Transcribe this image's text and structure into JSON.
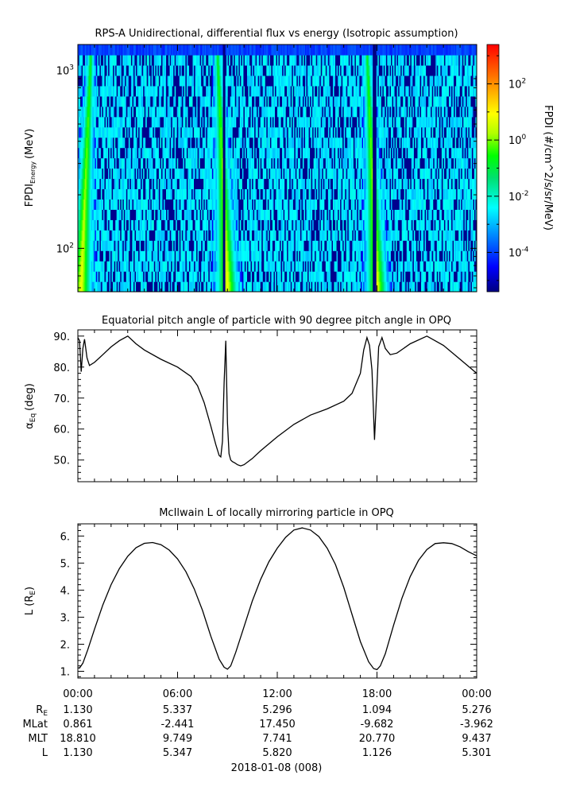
{
  "chart_data": [
    {
      "type": "heatmap",
      "title": "RPS-A Unidirectional, differential flux vs energy (Isotropic assumption)",
      "ylabel_main": "FPDI",
      "ylabel_sub": "Energy",
      "ylabel_unit": "(MeV)",
      "yscale": "log",
      "ylim": [
        57,
        1400
      ],
      "y_ticks": [
        {
          "value": 100,
          "base": "10",
          "exp": "2"
        },
        {
          "value": 1000,
          "base": "10",
          "exp": "3"
        }
      ],
      "xlim_hours": [
        0,
        24
      ],
      "colorbar": {
        "label": "FPDI (#/cm^2/s/sr/MeV)",
        "scale": "log",
        "range": [
          -5.4,
          3.4
        ],
        "ticks": [
          {
            "value": -4,
            "base": "10",
            "exp": "-4"
          },
          {
            "value": -2,
            "base": "10",
            "exp": "-2"
          },
          {
            "value": 0,
            "base": "10",
            "exp": "0"
          },
          {
            "value": 2,
            "base": "10",
            "exp": "2"
          }
        ]
      },
      "features": {
        "high_flux_bands_hours": [
          0.2,
          9.0,
          18.0
        ],
        "gap_hours": [
          8.8,
          17.85
        ]
      }
    },
    {
      "type": "line",
      "title": "Equatorial pitch angle of particle with 90 degree pitch angle in OPQ",
      "ylabel_main": "α",
      "ylabel_sub": "Eq",
      "ylabel_unit": "(deg)",
      "ylim": [
        43,
        92
      ],
      "y_ticks": [
        "50.",
        "60.",
        "70.",
        "80.",
        "90."
      ],
      "xlim_hours": [
        0,
        24
      ],
      "x": [
        0.0,
        0.1,
        0.2,
        0.3,
        0.4,
        0.55,
        0.7,
        1.0,
        1.5,
        2.0,
        2.5,
        3.0,
        3.5,
        4.0,
        5.0,
        6.0,
        6.8,
        7.2,
        7.6,
        8.0,
        8.3,
        8.5,
        8.6,
        8.7,
        8.8,
        8.9,
        9.0,
        9.1,
        9.2,
        9.3,
        9.4,
        9.5,
        9.6,
        9.8,
        10.0,
        10.5,
        11.0,
        12.0,
        13.0,
        14.0,
        15.0,
        16.0,
        16.5,
        17.0,
        17.2,
        17.4,
        17.55,
        17.7,
        17.85,
        18.0,
        18.1,
        18.3,
        18.5,
        18.8,
        19.2,
        20.0,
        21.0,
        22.0,
        23.0,
        24.0
      ],
      "y": [
        89.5,
        88.5,
        78.5,
        86.0,
        89.0,
        83.0,
        80.5,
        81.5,
        84.0,
        86.5,
        88.5,
        90.0,
        87.5,
        85.5,
        82.5,
        80.0,
        77.0,
        74.0,
        68.5,
        61.0,
        55.0,
        51.5,
        51.0,
        56.0,
        75.0,
        88.5,
        62.0,
        52.0,
        50.0,
        49.5,
        49.2,
        48.9,
        48.5,
        48.1,
        48.5,
        50.5,
        53.0,
        57.5,
        61.5,
        64.5,
        66.5,
        69.0,
        71.5,
        78.0,
        85.5,
        89.5,
        87.0,
        79.0,
        56.5,
        74.0,
        86.5,
        89.5,
        86.0,
        84.0,
        84.5,
        87.5,
        90.0,
        87.0,
        82.5,
        78.0
      ]
    },
    {
      "type": "line",
      "title": "McIlwain L of locally mirroring particle in OPQ",
      "ylabel_main": "L (R",
      "ylabel_sub": "E",
      "ylabel_unit": ")",
      "ylim": [
        0.75,
        6.45
      ],
      "y_ticks": [
        "1.",
        "2.",
        "3.",
        "4.",
        "5.",
        "6."
      ],
      "xlim_hours": [
        0,
        24
      ],
      "x": [
        0.0,
        0.1,
        0.3,
        0.6,
        1.0,
        1.5,
        2.0,
        2.5,
        3.0,
        3.5,
        4.0,
        4.5,
        5.0,
        5.5,
        6.0,
        6.5,
        7.0,
        7.5,
        8.0,
        8.5,
        8.8,
        9.0,
        9.2,
        9.5,
        10.0,
        10.5,
        11.0,
        11.5,
        12.0,
        12.5,
        13.0,
        13.5,
        14.0,
        14.5,
        15.0,
        15.5,
        16.0,
        16.5,
        17.0,
        17.5,
        17.8,
        18.0,
        18.2,
        18.5,
        19.0,
        19.5,
        20.0,
        20.5,
        21.0,
        21.5,
        22.0,
        22.5,
        23.0,
        23.5,
        24.0
      ],
      "y": [
        1.13,
        1.12,
        1.3,
        1.8,
        2.55,
        3.45,
        4.2,
        4.8,
        5.25,
        5.57,
        5.73,
        5.76,
        5.68,
        5.48,
        5.15,
        4.68,
        4.05,
        3.25,
        2.3,
        1.45,
        1.15,
        1.08,
        1.2,
        1.7,
        2.65,
        3.6,
        4.4,
        5.05,
        5.55,
        5.95,
        6.22,
        6.3,
        6.22,
        5.98,
        5.55,
        4.95,
        4.1,
        3.1,
        2.1,
        1.35,
        1.1,
        1.06,
        1.2,
        1.65,
        2.7,
        3.7,
        4.5,
        5.1,
        5.5,
        5.72,
        5.75,
        5.72,
        5.6,
        5.42,
        5.27
      ]
    }
  ],
  "time_axis": {
    "tick_labels": [
      "00:00",
      "06:00",
      "12:00",
      "18:00",
      "00:00"
    ],
    "row_labels": [
      {
        "main": "R",
        "sub": "E"
      },
      {
        "main": "MLat",
        "sub": ""
      },
      {
        "main": "MLT",
        "sub": ""
      },
      {
        "main": "L",
        "sub": ""
      }
    ],
    "rows": [
      [
        "1.130",
        "5.337",
        "5.296",
        "1.094",
        "5.276"
      ],
      [
        "0.861",
        "-2.441",
        "17.450",
        "-9.682",
        "-3.962"
      ],
      [
        "18.810",
        "9.749",
        "7.741",
        "20.770",
        "9.437"
      ],
      [
        "1.130",
        "5.347",
        "5.820",
        "1.126",
        "5.301"
      ]
    ],
    "date_label": "2018-01-08 (008)"
  }
}
